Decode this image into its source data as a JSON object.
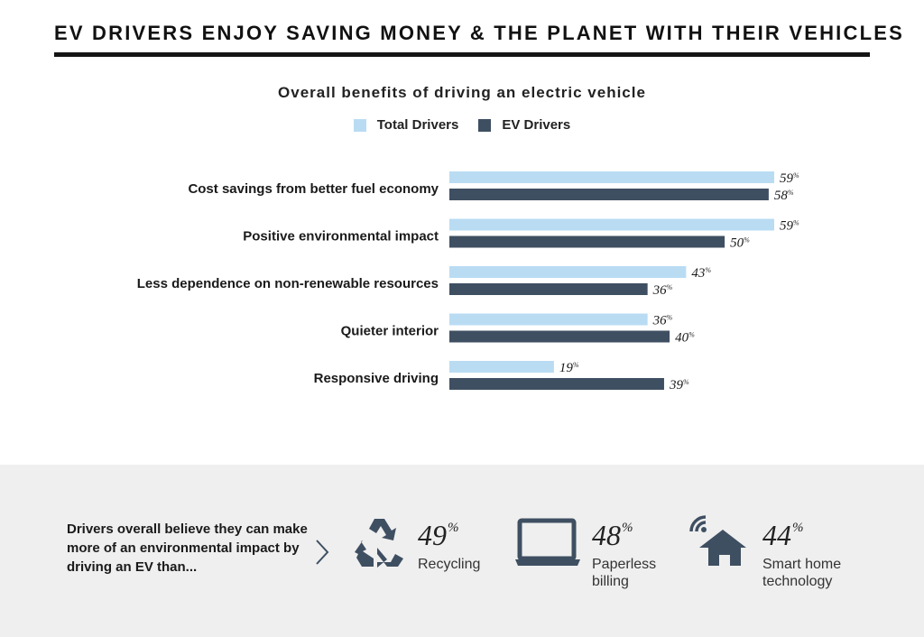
{
  "page": {
    "title": "EV DRIVERS ENJOY SAVING MONEY & THE PLANET WITH THEIR VEHICLES",
    "subtitle": "Overall benefits of driving an electric vehicle"
  },
  "colors": {
    "total": "#b9dcf3",
    "ev": "#3f4f62",
    "text": "#1a1a1a",
    "panel": "#efefef",
    "icon": "#3f4f62"
  },
  "chart_data": {
    "type": "bar",
    "orientation": "horizontal",
    "title": "Overall benefits of driving an electric vehicle",
    "unit": "%",
    "categories": [
      "Cost savings from better fuel economy",
      "Positive environmental impact",
      "Less dependence on non-renewable resources",
      "Quieter interior",
      "Responsive driving"
    ],
    "series": [
      {
        "name": "Total Drivers",
        "values": [
          59,
          59,
          43,
          36,
          19
        ]
      },
      {
        "name": "EV Drivers",
        "values": [
          58,
          50,
          36,
          40,
          39
        ]
      }
    ],
    "legend": "top-center",
    "grid": false,
    "xlim": [
      0,
      59
    ]
  },
  "bottom": {
    "text": "Drivers overall believe they can make more of an environmental impact by driving an EV than...",
    "stats": [
      {
        "value": "49",
        "unit": "%",
        "label": "Recycling",
        "icon": "recycling-icon"
      },
      {
        "value": "48",
        "unit": "%",
        "label": "Paperless billing",
        "icon": "laptop-icon"
      },
      {
        "value": "44",
        "unit": "%",
        "label": "Smart home technology",
        "icon": "smart-home-icon"
      }
    ]
  }
}
